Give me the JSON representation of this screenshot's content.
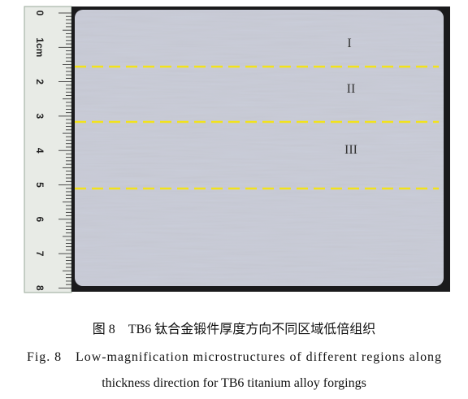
{
  "figure": {
    "ruler_labels": [
      "0",
      "1cm",
      "2",
      "3",
      "4",
      "5",
      "6",
      "7",
      "8"
    ],
    "region_labels": [
      "I",
      "II",
      "III"
    ],
    "caption_zh": "图 8　TB6 钛合金锻件厚度方向不同区域低倍组织",
    "caption_en": [
      "Fig. 8　Low-magnification microstructures of different regions along",
      "thickness direction for TB6 titanium alloy forgings"
    ]
  }
}
